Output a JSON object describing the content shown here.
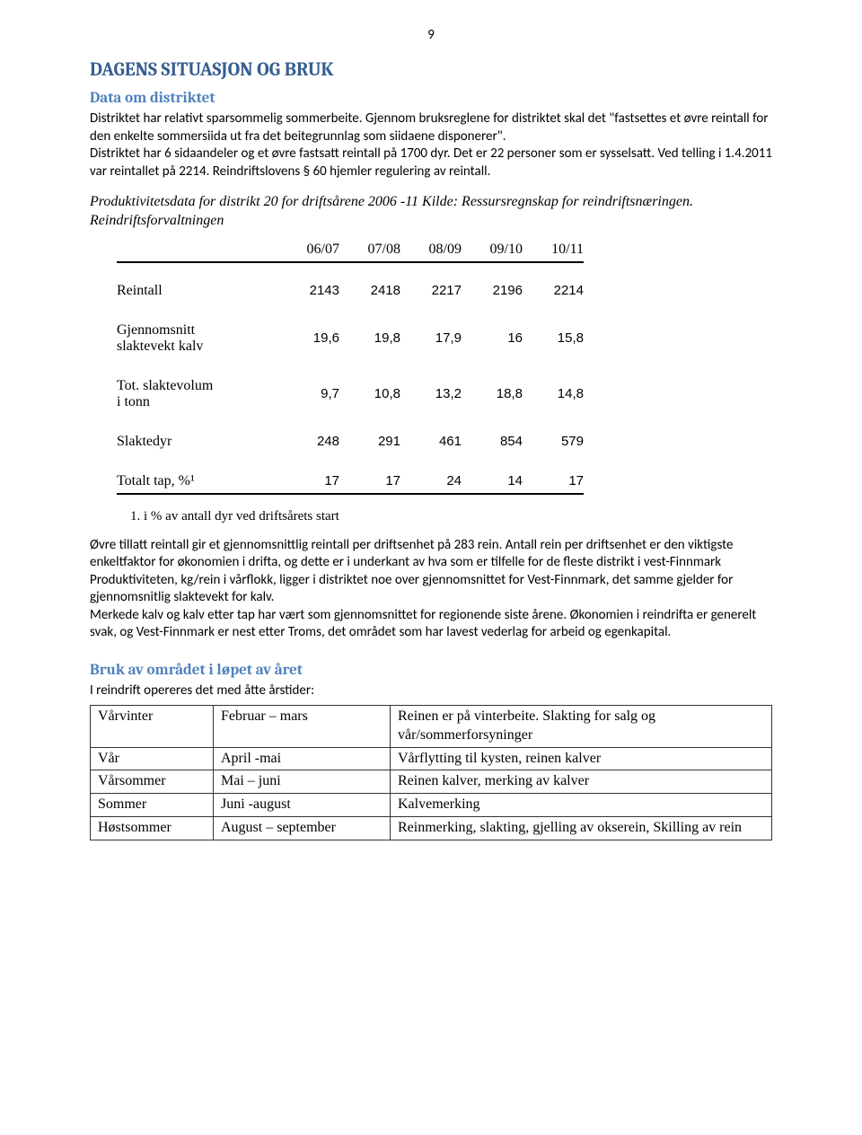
{
  "page_number": "9",
  "h1": "DAGENS SITUASJON OG BRUK",
  "h2_data": "Data om distriktet",
  "para1": "Distriktet har relativt sparsommelig sommerbeite. Gjennom bruksreglene for distriktet skal det \"fastsettes et øvre reintall for den enkelte sommersiida ut fra det beitegrunnlag som siidaene disponerer\".",
  "para2": "Distriktet har 6 sidaandeler og et øvre fastsatt reintall på 1700 dyr. Det er 22 personer som er sysselsatt. Ved telling i 1.4.2011 var reintallet på 2214. Reindriftslovens § 60 hjemler regulering av reintall.",
  "italic_caption": "Produktivitetsdata for distrikt 20 for driftsårene 2006 -11 Kilde: Ressursregnskap for reindriftsnæringen. Reindriftsforvaltningen",
  "table": {
    "headers": [
      "06/07",
      "07/08",
      "08/09",
      "09/10",
      "10/11"
    ],
    "rows": [
      {
        "label": "Reintall",
        "values": [
          "2143",
          "2418",
          "2217",
          "2196",
          "2214"
        ]
      },
      {
        "label": "Gjennomsnitt slaktevekt kalv",
        "values": [
          "19,6",
          "19,8",
          "17,9",
          "16",
          "15,8"
        ]
      },
      {
        "label": "Tot. slaktevolum i tonn",
        "values": [
          "9,7",
          "10,8",
          "13,2",
          "18,8",
          "14,8"
        ]
      },
      {
        "label": "Slaktedyr",
        "values": [
          "248",
          "291",
          "461",
          "854",
          "579"
        ]
      },
      {
        "label": "Totalt tap, %¹",
        "values": [
          "17",
          "17",
          "24",
          "14",
          "17"
        ]
      }
    ]
  },
  "footnote": "i % av antall dyr ved driftsårets start",
  "para3": "Øvre tillatt reintall gir et gjennomsnittlig reintall per driftsenhet på 283 rein. Antall rein per driftsenhet er den viktigste enkeltfaktor for økonomien i drifta, og dette er i underkant av hva som er tilfelle for de fleste distrikt i vest-Finnmark",
  "para4": "Produktiviteten, kg/rein i vårflokk, ligger i distriktet noe over gjennomsnittet for Vest-Finnmark, det samme gjelder for gjennomsnitlig slaktevekt for kalv.",
  "para5": "Merkede kalv og kalv etter tap har vært som gjennomsnittet for regionende siste årene. Økonomien i reindrifta er generelt svak, og Vest-Finnmark er nest etter Troms, det området som har lavest vederlag for arbeid og egenkapital.",
  "h2_bruk": "Bruk av området i løpet av året",
  "bruk_intro": "I reindrift opereres det med åtte årstider:",
  "seasons": [
    {
      "name": "Vårvinter",
      "period": "Februar – mars",
      "desc": "Reinen er på vinterbeite. Slakting for salg og vår/sommerforsyninger"
    },
    {
      "name": "Vår",
      "period": "April -mai",
      "desc": "Vårflytting til kysten, reinen kalver"
    },
    {
      "name": "Vårsommer",
      "period": "Mai – juni",
      "desc": "Reinen kalver, merking av kalver"
    },
    {
      "name": "Sommer",
      "period": "Juni -august",
      "desc": "Kalvemerking"
    },
    {
      "name": "Høstsommer",
      "period": "August – september",
      "desc": "Reinmerking, slakting, gjelling av okserein, Skilling av rein"
    }
  ]
}
